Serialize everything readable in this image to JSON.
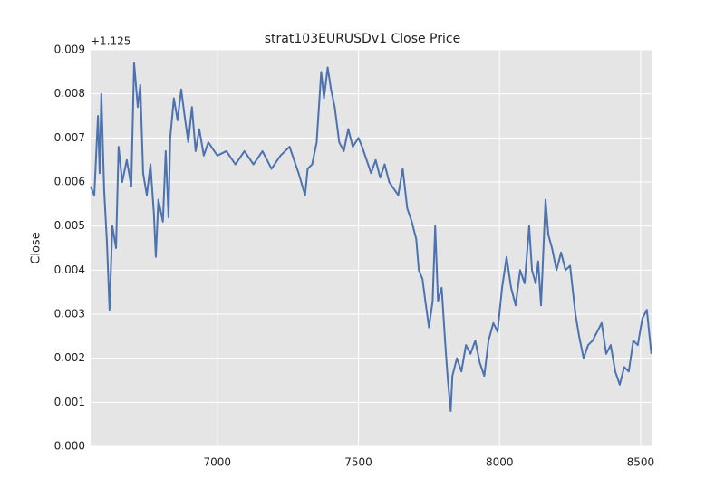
{
  "chart_data": {
    "type": "line",
    "title": "strat103EURUSDv1 Close Price",
    "ylabel": "Close",
    "y_offset_label": "+1.125",
    "x": [
      6551,
      6564,
      6577,
      6583,
      6589,
      6599,
      6609,
      6618,
      6628,
      6641,
      6650,
      6663,
      6679,
      6695,
      6705,
      6718,
      6727,
      6737,
      6750,
      6763,
      6775,
      6782,
      6791,
      6807,
      6817,
      6827,
      6833,
      6846,
      6859,
      6872,
      6884,
      6897,
      6910,
      6923,
      6936,
      6952,
      6968,
      7000,
      7032,
      7064,
      7096,
      7128,
      7160,
      7192,
      7224,
      7256,
      7288,
      7311,
      7320,
      7336,
      7352,
      7368,
      7378,
      7391,
      7403,
      7416,
      7432,
      7448,
      7464,
      7480,
      7500,
      7513,
      7529,
      7545,
      7561,
      7577,
      7593,
      7609,
      7641,
      7657,
      7673,
      7689,
      7705,
      7714,
      7727,
      7737,
      7750,
      7763,
      7772,
      7782,
      7795,
      7808,
      7817,
      7827,
      7833,
      7849,
      7865,
      7881,
      7897,
      7914,
      7930,
      7946,
      7961,
      7978,
      7993,
      8009,
      8025,
      8041,
      8057,
      8073,
      8089,
      8105,
      8115,
      8128,
      8137,
      8147,
      8163,
      8173,
      8186,
      8202,
      8218,
      8234,
      8250,
      8269,
      8282,
      8298,
      8314,
      8330,
      8346,
      8362,
      8378,
      8394,
      8410,
      8426,
      8442,
      8458,
      8474,
      8490,
      8506,
      8522,
      8538
    ],
    "series": [
      {
        "name": "Close",
        "color": "#4c72b0",
        "values": [
          0.0059,
          0.0057,
          0.0075,
          0.0062,
          0.008,
          0.0058,
          0.0046,
          0.0031,
          0.005,
          0.0045,
          0.0068,
          0.006,
          0.0065,
          0.0059,
          0.0087,
          0.0077,
          0.0082,
          0.0062,
          0.0057,
          0.0064,
          0.0053,
          0.0043,
          0.0056,
          0.0051,
          0.0067,
          0.0052,
          0.007,
          0.0079,
          0.0074,
          0.0081,
          0.0075,
          0.0069,
          0.0077,
          0.0067,
          0.0072,
          0.0066,
          0.0069,
          0.0066,
          0.0067,
          0.0064,
          0.0067,
          0.0064,
          0.0067,
          0.0063,
          0.0066,
          0.0068,
          0.0062,
          0.0057,
          0.0063,
          0.0064,
          0.0069,
          0.0085,
          0.0079,
          0.0086,
          0.0081,
          0.0077,
          0.0069,
          0.0067,
          0.0072,
          0.0068,
          0.007,
          0.0068,
          0.0065,
          0.0062,
          0.0065,
          0.0061,
          0.0064,
          0.006,
          0.0057,
          0.0063,
          0.0054,
          0.0051,
          0.0047,
          0.004,
          0.0038,
          0.0033,
          0.0027,
          0.0033,
          0.005,
          0.0033,
          0.0036,
          0.0023,
          0.0015,
          0.0008,
          0.0016,
          0.002,
          0.0017,
          0.0023,
          0.0021,
          0.0024,
          0.0019,
          0.0016,
          0.0024,
          0.0028,
          0.0026,
          0.0036,
          0.0043,
          0.0036,
          0.0032,
          0.004,
          0.0037,
          0.005,
          0.004,
          0.0037,
          0.0042,
          0.0032,
          0.0056,
          0.0048,
          0.0045,
          0.004,
          0.0044,
          0.004,
          0.0041,
          0.003,
          0.0025,
          0.002,
          0.0023,
          0.0024,
          0.0026,
          0.0028,
          0.0021,
          0.0023,
          0.0017,
          0.0014,
          0.0018,
          0.0017,
          0.0024,
          0.0023,
          0.0029,
          0.0031,
          0.0021
        ]
      }
    ],
    "xlim": [
      6551,
      8542
    ],
    "xticks": [
      7000,
      7500,
      8000,
      8500
    ],
    "ylim": [
      0,
      0.009
    ],
    "yticks": [
      {
        "value": 0,
        "label": "0.000"
      },
      0.001,
      0.002,
      0.003,
      0.004,
      0.005,
      0.006,
      0.007,
      0.008,
      0.009
    ],
    "grid": true,
    "background": "#e5e5e5"
  }
}
